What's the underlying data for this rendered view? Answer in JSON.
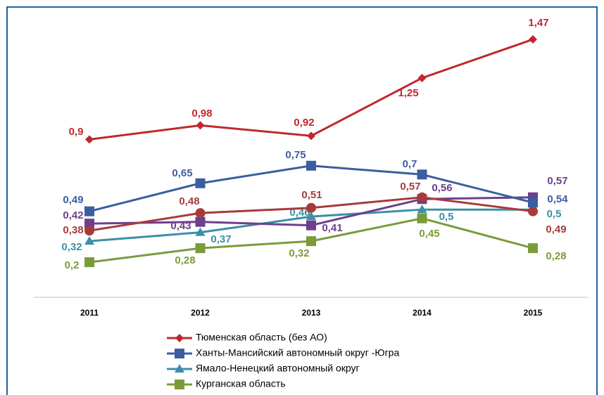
{
  "chart_data": {
    "type": "line",
    "categories": [
      "2011",
      "2012",
      "2013",
      "2014",
      "2015"
    ],
    "ylim": [
      0,
      1.6
    ],
    "series": [
      {
        "name": "Тюменская область (без АО)",
        "color": "#c0282d",
        "marker": "diamond",
        "values": [
          0.9,
          0.98,
          0.92,
          1.25,
          1.47
        ],
        "value_labels": [
          "0,9",
          "0,98",
          "0,92",
          "1,25",
          "1,47"
        ]
      },
      {
        "name": "Ханты-Мансийский  автономный округ -Югра",
        "color": "#3b5ea0",
        "marker": "square",
        "values": [
          0.49,
          0.65,
          0.75,
          0.7,
          0.54
        ],
        "value_labels": [
          "0,49",
          "0,65",
          "0,75",
          "0,7",
          "0,54"
        ]
      },
      {
        "name": "Ямало-Ненецкий  автономный округ",
        "color": "#3b8fa8",
        "marker": "triangle",
        "values": [
          0.32,
          0.37,
          0.46,
          0.5,
          0.5
        ],
        "value_labels": [
          "0,32",
          "0,37",
          "0,46",
          "0,5",
          "0,5"
        ]
      },
      {
        "name": "Курганская  область",
        "color": "#7b9b3a",
        "marker": "square",
        "values": [
          0.2,
          0.28,
          0.32,
          0.45,
          0.28
        ],
        "value_labels": [
          "0,2",
          "0,28",
          "0,32",
          "0,45",
          "0,28"
        ]
      },
      {
        "color": "#6e3f8c",
        "marker": "square",
        "values": [
          0.42,
          0.43,
          0.41,
          0.56,
          0.57
        ],
        "value_labels": [
          "0,42",
          "0,43",
          "0,41",
          "0,56",
          "0,57"
        ]
      },
      {
        "color": "#a83a3a",
        "marker": "circle",
        "values": [
          0.38,
          0.48,
          0.51,
          0.57,
          0.49
        ],
        "value_labels": [
          "0,38",
          "0,48",
          "0,51",
          "0,57",
          "0,49"
        ]
      }
    ]
  }
}
